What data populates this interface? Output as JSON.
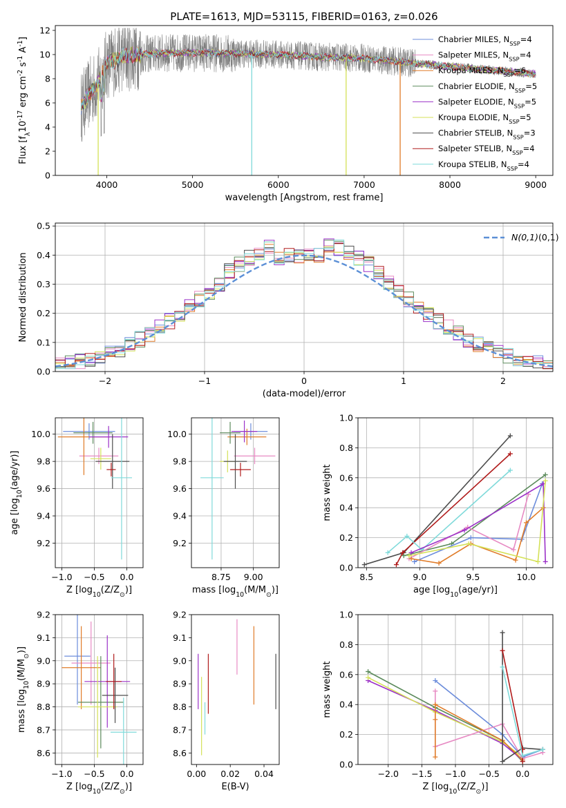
{
  "chart_data": [
    {
      "id": "spectrum",
      "type": "line",
      "title": "PLATE=1613, MJD=53115, FIBERID=0163, z=0.026",
      "xlabel": "wavelength [Angstrom, rest frame]",
      "ylabel": "Flux [f$_\\lambda$10$^{-17}$ erg cm$^{-2}$ s$^{-1}$ A$^{-1}$]",
      "xlim": [
        3400,
        9200
      ],
      "ylim": [
        0,
        12.4
      ],
      "xticks": [
        4000,
        5000,
        6000,
        7000,
        8000,
        9000
      ],
      "yticks": [
        0,
        2,
        4,
        6,
        8,
        10,
        12
      ],
      "grid": false,
      "legend_position": "top-right",
      "observed_color": "#7f7f7f",
      "continuum_knots": {
        "x": [
          3700,
          3800,
          3900,
          4000,
          4200,
          4400,
          4600,
          5000,
          5500,
          6000,
          6500,
          7000,
          7500,
          8000,
          8500,
          9000
        ],
        "y": [
          5.6,
          6.8,
          7.6,
          9.2,
          9.9,
          10.0,
          10.1,
          10.15,
          10.1,
          10.0,
          9.8,
          9.7,
          9.35,
          9.0,
          8.7,
          8.4
        ]
      },
      "models": [
        {
          "name": "Chabrier MILES, N$_{SSP}$=4",
          "color": "#6b8cdb"
        },
        {
          "name": "Salpeter MILES, N$_{SSP}$=4",
          "color": "#e78ac3"
        },
        {
          "name": "Kroupa MILES, N$_{SSP}$=6",
          "color": "#e07b28"
        },
        {
          "name": "Chabrier ELODIE, N$_{SSP}$=5",
          "color": "#5b8a5b"
        },
        {
          "name": "Salpeter ELODIE, N$_{SSP}$=5",
          "color": "#9b30c8"
        },
        {
          "name": "Kroupa ELODIE, N$_{SSP}$=5",
          "color": "#d4e157"
        },
        {
          "name": "Chabrier STELIB, N$_{SSP}$=3",
          "color": "#4d4d4d"
        },
        {
          "name": "Salpeter STELIB, N$_{SSP}$=4",
          "color": "#b01b1b"
        },
        {
          "name": "Kroupa STELIB, N$_{SSP}$=4",
          "color": "#7fdada"
        }
      ],
      "drops": [
        {
          "x": 3900,
          "color": "#d4e157"
        },
        {
          "x": 5690,
          "color": "#7fdada"
        },
        {
          "x": 6790,
          "color": "#d4e157"
        },
        {
          "x": 7420,
          "color": "#e07b28"
        }
      ]
    },
    {
      "id": "residuals",
      "type": "histogram",
      "xlabel": "(data-model)/error",
      "ylabel": "Normed distribution",
      "xlim": [
        -2.5,
        2.5
      ],
      "ylim": [
        0,
        0.51
      ],
      "xticks": [
        -2,
        -1,
        0,
        1,
        2
      ],
      "yticks": [
        0.0,
        0.1,
        0.2,
        0.3,
        0.4,
        0.5
      ],
      "grid": true,
      "bin_width": 0.1,
      "legend_position": "top-right",
      "reference_curve": {
        "name": "$\\mathcal{N}(0,1)$",
        "color": "#5b8fd6",
        "style": "dashed"
      }
    },
    {
      "id": "age-vs-Z",
      "type": "errorbar",
      "xlabel": "Z [log$_{10}$(Z/Z$_\\odot$)]",
      "ylabel": "age  [log$_{10}$(age/yr)]",
      "xlim": [
        -1.1,
        0.25
      ],
      "ylim": [
        9.02,
        10.12
      ],
      "xticks": [
        -1.0,
        -0.5,
        0.0
      ],
      "yticks": [
        9.2,
        9.4,
        9.6,
        9.8,
        10.0
      ],
      "grid": true,
      "points": [
        {
          "x": -0.58,
          "xerr": 0.4,
          "y": 10.02,
          "yerr": 0.06,
          "color": "#6b8cdb"
        },
        {
          "x": -0.43,
          "xerr": 0.3,
          "y": 9.84,
          "yerr": 0.06,
          "color": "#e78ac3"
        },
        {
          "x": -0.66,
          "xerr": 0.4,
          "y": 9.98,
          "yerr": 0.28,
          "color": "#e07b28"
        },
        {
          "x": -0.52,
          "xerr": 0.3,
          "y": 10.01,
          "yerr": 0.08,
          "color": "#5b8a5b"
        },
        {
          "x": -0.28,
          "xerr": 0.3,
          "y": 9.98,
          "yerr": 0.08,
          "color": "#9b30c8"
        },
        {
          "x": -0.4,
          "xerr": 0.16,
          "y": 9.82,
          "yerr": 0.08,
          "color": "#d4e157"
        },
        {
          "x": -0.22,
          "xerr": 0.26,
          "y": 9.8,
          "yerr": 0.2,
          "color": "#4d4d4d"
        },
        {
          "x": -0.24,
          "xerr": 0.07,
          "y": 9.74,
          "yerr": 0.05,
          "color": "#b01b1b"
        },
        {
          "x": -0.08,
          "xerr": 0.16,
          "y": 9.68,
          "yerr": 0.6,
          "color": "#7fdada"
        }
      ]
    },
    {
      "id": "age-vs-mass",
      "type": "errorbar",
      "xlabel": "mass [log$_{10}$(M/M$_\\odot$)]",
      "ylabel": "",
      "xlim": [
        8.52,
        9.2
      ],
      "ylim": [
        9.02,
        10.12
      ],
      "xticks": [
        8.75,
        9.0
      ],
      "yticks": [
        9.2,
        9.4,
        9.6,
        9.8,
        10.0
      ],
      "grid": true,
      "points": [
        {
          "x": 8.98,
          "xerr": 0.13,
          "y": 10.02,
          "yerr": 0.06,
          "color": "#6b8cdb"
        },
        {
          "x": 9.01,
          "xerr": 0.16,
          "y": 9.84,
          "yerr": 0.06,
          "color": "#e78ac3"
        },
        {
          "x": 8.95,
          "xerr": 0.15,
          "y": 9.98,
          "yerr": 0.06,
          "color": "#e07b28"
        },
        {
          "x": 8.82,
          "xerr": 0.08,
          "y": 10.01,
          "yerr": 0.08,
          "color": "#5b8a5b"
        },
        {
          "x": 8.93,
          "xerr": 0.1,
          "y": 10.02,
          "yerr": 0.08,
          "color": "#9b30c8"
        },
        {
          "x": 8.8,
          "xerr": 0.06,
          "y": 9.8,
          "yerr": 0.08,
          "color": "#d4e157"
        },
        {
          "x": 8.86,
          "xerr": 0.09,
          "y": 9.8,
          "yerr": 0.2,
          "color": "#4d4d4d"
        },
        {
          "x": 8.9,
          "xerr": 0.08,
          "y": 9.74,
          "yerr": 0.05,
          "color": "#b01b1b"
        },
        {
          "x": 8.68,
          "xerr": 0.09,
          "y": 9.68,
          "yerr": 0.6,
          "color": "#7fdada"
        }
      ]
    },
    {
      "id": "weight-vs-age",
      "type": "line",
      "xlabel": "age  [log$_{10}$(age/yr)]",
      "ylabel": "mass weight",
      "xlim": [
        8.42,
        10.25
      ],
      "ylim": [
        0,
        1.0
      ],
      "xticks": [
        8.5,
        9.0,
        9.5,
        10.0
      ],
      "yticks": [
        0.0,
        0.2,
        0.4,
        0.6,
        0.8,
        1.0
      ],
      "grid": true,
      "series": [
        {
          "color": "#4d4d4d",
          "x": [
            8.48,
            8.85,
            9.85
          ],
          "y": [
            0.02,
            0.1,
            0.88
          ]
        },
        {
          "color": "#b01b1b",
          "x": [
            8.78,
            8.84,
            9.85
          ],
          "y": [
            0.02,
            0.1,
            0.76
          ]
        },
        {
          "color": "#7fdada",
          "x": [
            8.7,
            8.88,
            9.02,
            9.85
          ],
          "y": [
            0.1,
            0.21,
            0.12,
            0.65
          ]
        },
        {
          "color": "#5b8a5b",
          "x": [
            8.85,
            9.3,
            10.18
          ],
          "y": [
            0.08,
            0.16,
            0.62
          ]
        },
        {
          "color": "#6b8cdb",
          "x": [
            8.95,
            9.48,
            9.96,
            10.15
          ],
          "y": [
            0.04,
            0.2,
            0.19,
            0.56
          ]
        },
        {
          "color": "#e78ac3",
          "x": [
            8.9,
            9.45,
            9.88,
            10.02
          ],
          "y": [
            0.06,
            0.27,
            0.12,
            0.49
          ]
        },
        {
          "color": "#9b30c8",
          "x": [
            8.92,
            9.42,
            10.16,
            10.18
          ],
          "y": [
            0.1,
            0.25,
            0.56,
            0.04
          ]
        },
        {
          "color": "#e07b28",
          "x": [
            8.92,
            9.18,
            9.48,
            9.9,
            10.0,
            10.16
          ],
          "y": [
            0.06,
            0.03,
            0.16,
            0.05,
            0.3,
            0.4
          ]
        },
        {
          "color": "#d4e157",
          "x": [
            8.9,
            9.46,
            10.11,
            10.18
          ],
          "y": [
            0.08,
            0.16,
            0.04,
            0.58
          ]
        }
      ]
    },
    {
      "id": "mass-vs-Z",
      "type": "errorbar",
      "xlabel": "Z [log$_{10}$(Z/Z$_\\odot$)]",
      "ylabel": "mass [log$_{10}$(M/M$_\\odot$)]",
      "xlim": [
        -1.1,
        0.25
      ],
      "ylim": [
        8.55,
        9.2
      ],
      "xticks": [
        -1.0,
        -0.5,
        0.0
      ],
      "yticks": [
        8.6,
        8.7,
        8.8,
        8.9,
        9.0,
        9.1,
        9.2
      ],
      "grid": true,
      "points": [
        {
          "x": -0.76,
          "xerr": 0.2,
          "y": 9.02,
          "yerr": 0.21,
          "color": "#6b8cdb"
        },
        {
          "x": -0.55,
          "xerr": 0.3,
          "y": 8.99,
          "yerr": 0.18,
          "color": "#e78ac3"
        },
        {
          "x": -0.7,
          "xerr": 0.3,
          "y": 8.97,
          "yerr": 0.18,
          "color": "#e07b28"
        },
        {
          "x": -0.4,
          "xerr": 0.35,
          "y": 8.82,
          "yerr": 0.2,
          "color": "#5b8a5b"
        },
        {
          "x": -0.3,
          "xerr": 0.35,
          "y": 8.91,
          "yerr": 0.2,
          "color": "#9b30c8"
        },
        {
          "x": -0.45,
          "xerr": 0.3,
          "y": 8.8,
          "yerr": 0.22,
          "color": "#d4e157"
        },
        {
          "x": -0.18,
          "xerr": 0.2,
          "y": 8.85,
          "yerr": 0.12,
          "color": "#4d4d4d"
        },
        {
          "x": -0.2,
          "xerr": 0.12,
          "y": 8.91,
          "yerr": 0.12,
          "color": "#b01b1b"
        },
        {
          "x": -0.05,
          "xerr": 0.2,
          "y": 8.69,
          "yerr": 0.15,
          "color": "#7fdada"
        }
      ]
    },
    {
      "id": "mass-vs-EBV",
      "type": "errorbar",
      "xlabel": "E(B-V)",
      "ylabel": "",
      "xlim": [
        -0.003,
        0.049
      ],
      "ylim": [
        8.55,
        9.2
      ],
      "xticks": [
        0.0,
        0.02,
        0.04
      ],
      "yticks": [
        8.6,
        8.7,
        8.8,
        8.9,
        9.0,
        9.1,
        9.2
      ],
      "grid": false,
      "points": [
        {
          "x": 0.001,
          "y": 8.91,
          "yerr": 0.12,
          "color": "#9b30c8"
        },
        {
          "x": 0.003,
          "y": 8.76,
          "yerr": 0.17,
          "color": "#d4e157"
        },
        {
          "x": 0.005,
          "y": 8.75,
          "yerr": 0.07,
          "color": "#7fdada"
        },
        {
          "x": 0.007,
          "y": 8.9,
          "yerr": 0.13,
          "color": "#b01b1b"
        },
        {
          "x": 0.024,
          "y": 9.06,
          "yerr": 0.12,
          "color": "#e78ac3"
        },
        {
          "x": 0.034,
          "y": 8.98,
          "yerr": 0.17,
          "color": "#e07b28"
        },
        {
          "x": 0.047,
          "y": 8.91,
          "yerr": 0.12,
          "color": "#4d4d4d"
        }
      ]
    },
    {
      "id": "weight-vs-Z",
      "type": "line",
      "xlabel": "Z [log$_{10}$(Z/Z$_\\odot$)]",
      "ylabel": "mass weight",
      "xlim": [
        -2.45,
        0.45
      ],
      "ylim": [
        0,
        1.0
      ],
      "xticks": [
        -2.0,
        -1.5,
        -1.0,
        -0.5,
        0.0
      ],
      "yticks": [
        0.0,
        0.2,
        0.4,
        0.6,
        0.8,
        1.0
      ],
      "grid": true,
      "series": [
        {
          "color": "#5b8a5b",
          "x": [
            -2.3,
            -1.3,
            -0.3,
            0.0
          ],
          "y": [
            0.62,
            0.38,
            0.16,
            0.02
          ]
        },
        {
          "color": "#9b30c8",
          "x": [
            -2.3,
            -1.3,
            -0.3,
            0.0
          ],
          "y": [
            0.56,
            0.36,
            0.14,
            0.03
          ]
        },
        {
          "color": "#d4e157",
          "x": [
            -2.3,
            -1.3,
            -0.3,
            0.0
          ],
          "y": [
            0.58,
            0.35,
            0.15,
            0.05
          ]
        },
        {
          "color": "#6b8cdb",
          "x": [
            -1.3,
            -0.3,
            0.0,
            0.3
          ],
          "y": [
            0.56,
            0.2,
            0.05,
            0.1
          ]
        },
        {
          "color": "#e78ac3",
          "x": [
            -1.3,
            -1.3,
            -0.3,
            0.0,
            0.3
          ],
          "y": [
            0.49,
            0.12,
            0.27,
            0.04,
            0.08
          ]
        },
        {
          "color": "#e07b28",
          "x": [
            -1.3,
            -1.3,
            -1.3,
            -0.3,
            0.0
          ],
          "y": [
            0.05,
            0.3,
            0.4,
            0.16,
            0.03
          ]
        },
        {
          "color": "#4d4d4d",
          "x": [
            -0.3,
            -0.3,
            0.0,
            0.3
          ],
          "y": [
            0.88,
            0.02,
            0.11,
            0.1
          ]
        },
        {
          "color": "#b01b1b",
          "x": [
            -0.3,
            0.0,
            0.0
          ],
          "y": [
            0.76,
            0.1,
            0.02
          ]
        },
        {
          "color": "#7fdada",
          "x": [
            -0.3,
            0.0,
            0.3
          ],
          "y": [
            0.65,
            0.06,
            0.1
          ]
        }
      ]
    }
  ]
}
